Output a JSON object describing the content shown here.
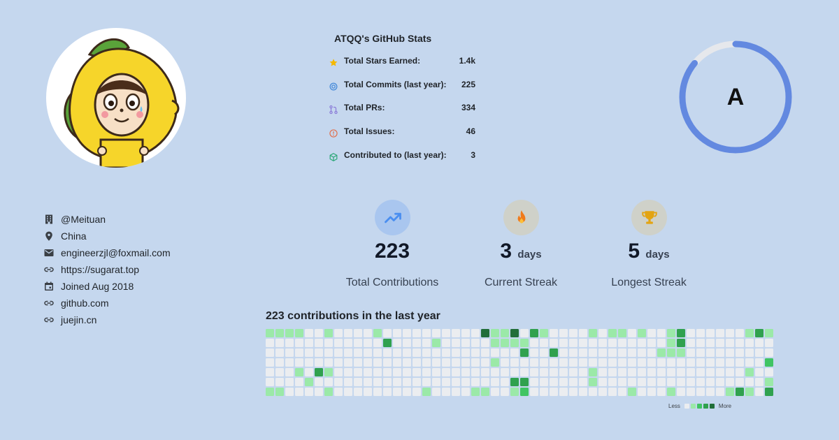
{
  "profile": {
    "avatar_icon": "lemon-character-avatar"
  },
  "stats": {
    "title": "ATQQ's GitHub Stats",
    "rows": [
      {
        "label": "Total Stars Earned:",
        "value": "1.4k",
        "icon": "star-icon",
        "color": "#f5b800"
      },
      {
        "label": "Total Commits (last year):",
        "value": "225",
        "icon": "commit-icon",
        "color": "#4c8eda"
      },
      {
        "label": "Total PRs:",
        "value": "334",
        "icon": "pull-request-icon",
        "color": "#8b7cd8"
      },
      {
        "label": "Total Issues:",
        "value": "46",
        "icon": "issue-icon",
        "color": "#e0704f"
      },
      {
        "label": "Contributed to (last year):",
        "value": "3",
        "icon": "repo-icon",
        "color": "#2ea87a"
      }
    ],
    "grade": "A",
    "grade_progress": 0.86,
    "ring_color": "#6389e0",
    "ring_track_color": "#e6e8ec"
  },
  "info": [
    {
      "text": "@Meituan",
      "icon": "building-icon"
    },
    {
      "text": "China",
      "icon": "location-pin-icon"
    },
    {
      "text": "engineerzjl@foxmail.com",
      "icon": "mail-icon"
    },
    {
      "text": "https://sugarat.top",
      "icon": "link-icon"
    },
    {
      "text": "Joined Aug 2018",
      "icon": "calendar-icon"
    },
    {
      "text": "github.com",
      "icon": "link-icon"
    },
    {
      "text": "juejin.cn",
      "icon": "link-icon"
    }
  ],
  "streaks": [
    {
      "number": "223",
      "unit": "",
      "label": "Total Contributions",
      "icon": "trending-up-icon",
      "bg": "#a9c6ef"
    },
    {
      "number": "3",
      "unit": "days",
      "label": "Current Streak",
      "icon": "fire-icon",
      "bg": "#cfd1c9"
    },
    {
      "number": "5",
      "unit": "days",
      "label": "Longest Streak",
      "icon": "trophy-icon",
      "bg": "#cfd1c9"
    }
  ],
  "heatmap": {
    "title": "223 contributions in the last year",
    "legend_less": "Less",
    "legend_more": "More",
    "colors": [
      "#ebedf0",
      "#9be9a8",
      "#40c463",
      "#30a14e",
      "#216e39"
    ],
    "weeks": 52,
    "days": 7,
    "cells": [
      [
        0,
        0,
        1
      ],
      [
        0,
        6,
        1
      ],
      [
        1,
        0,
        1
      ],
      [
        1,
        6,
        1
      ],
      [
        2,
        0,
        1
      ],
      [
        3,
        0,
        1
      ],
      [
        3,
        4,
        1
      ],
      [
        4,
        5,
        1
      ],
      [
        5,
        4,
        3
      ],
      [
        6,
        0,
        1
      ],
      [
        6,
        4,
        1
      ],
      [
        6,
        6,
        1
      ],
      [
        11,
        0,
        1
      ],
      [
        12,
        1,
        3
      ],
      [
        16,
        6,
        1
      ],
      [
        17,
        1,
        1
      ],
      [
        21,
        6,
        1
      ],
      [
        22,
        0,
        4
      ],
      [
        22,
        6,
        1
      ],
      [
        23,
        0,
        1
      ],
      [
        23,
        1,
        1
      ],
      [
        23,
        3,
        1
      ],
      [
        24,
        0,
        1
      ],
      [
        24,
        1,
        1
      ],
      [
        25,
        0,
        4
      ],
      [
        25,
        1,
        1
      ],
      [
        25,
        5,
        3
      ],
      [
        25,
        6,
        1
      ],
      [
        26,
        1,
        1
      ],
      [
        26,
        2,
        3
      ],
      [
        26,
        5,
        3
      ],
      [
        26,
        6,
        2
      ],
      [
        27,
        0,
        3
      ],
      [
        28,
        0,
        1
      ],
      [
        29,
        2,
        3
      ],
      [
        33,
        0,
        1
      ],
      [
        33,
        4,
        1
      ],
      [
        33,
        5,
        1
      ],
      [
        35,
        0,
        1
      ],
      [
        36,
        0,
        1
      ],
      [
        37,
        6,
        1
      ],
      [
        38,
        0,
        1
      ],
      [
        40,
        2,
        1
      ],
      [
        41,
        0,
        1
      ],
      [
        41,
        1,
        1
      ],
      [
        41,
        2,
        1
      ],
      [
        41,
        6,
        1
      ],
      [
        42,
        0,
        3
      ],
      [
        42,
        1,
        3
      ],
      [
        42,
        2,
        1
      ],
      [
        47,
        6,
        1
      ],
      [
        48,
        6,
        3
      ],
      [
        49,
        0,
        1
      ],
      [
        49,
        4,
        1
      ],
      [
        49,
        6,
        1
      ],
      [
        50,
        0,
        3
      ],
      [
        51,
        0,
        1
      ],
      [
        51,
        3,
        2
      ],
      [
        51,
        5,
        1
      ],
      [
        51,
        6,
        3
      ]
    ]
  }
}
